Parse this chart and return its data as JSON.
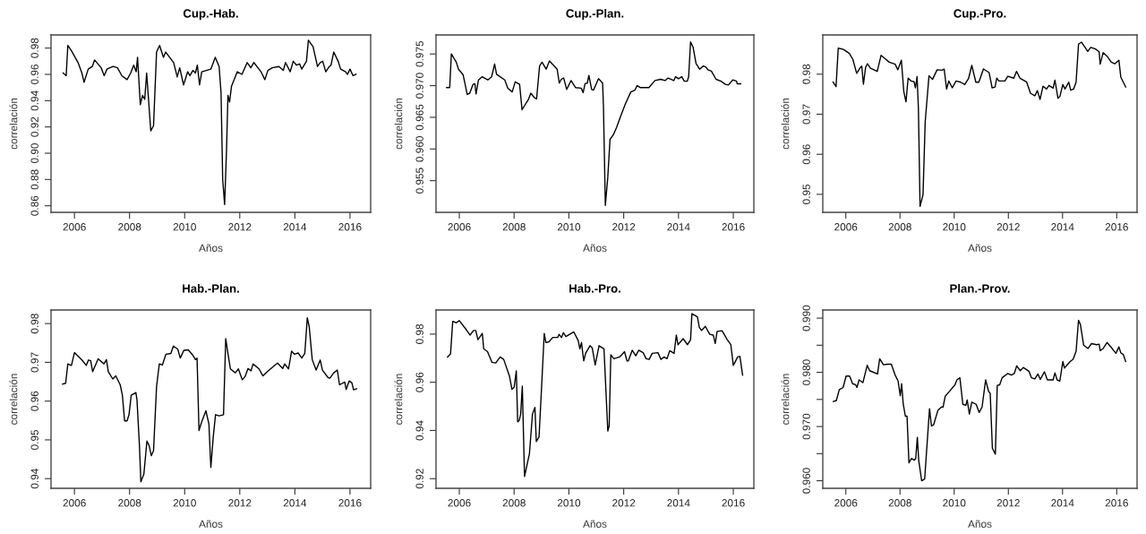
{
  "chart_data": [
    {
      "type": "line",
      "title": "Cup.-Hab.",
      "xlabel": "Años",
      "ylabel": "correlación",
      "color": "#000000",
      "xlim": [
        2005.15,
        2016.75
      ],
      "xticks": [
        2006,
        2008,
        2010,
        2012,
        2014,
        2016
      ],
      "ylim": [
        0.855,
        0.99
      ],
      "yticks": [
        0.86,
        0.88,
        {
          "value": 0.9,
          "label": "0.90"
        },
        0.92,
        0.94,
        0.96,
        0.98
      ],
      "x": [
        2005.59,
        2005.7,
        2005.76,
        2005.89,
        2006.13,
        2006.27,
        2006.35,
        2006.5,
        2006.65,
        2006.73,
        2006.97,
        2007.08,
        2007.18,
        2007.4,
        2007.56,
        2007.72,
        2007.91,
        2008.04,
        2008.15,
        2008.24,
        2008.29,
        2008.39,
        2008.47,
        2008.55,
        2008.62,
        2008.77,
        2008.87,
        2008.98,
        2009.09,
        2009.23,
        2009.31,
        2009.6,
        2009.73,
        2009.82,
        2009.96,
        2010.11,
        2010.19,
        2010.3,
        2010.39,
        2010.46,
        2010.54,
        2010.62,
        2010.95,
        2011.11,
        2011.25,
        2011.32,
        2011.38,
        2011.45,
        2011.52,
        2011.57,
        2011.63,
        2011.7,
        2011.91,
        2012.08,
        2012.27,
        2012.4,
        2012.51,
        2012.77,
        2012.91,
        2013.02,
        2013.18,
        2013.42,
        2013.58,
        2013.66,
        2013.83,
        2013.94,
        2014.06,
        2014.17,
        2014.25,
        2014.42,
        2014.49,
        2014.66,
        2014.82,
        2014.92,
        2015.01,
        2015.12,
        2015.25,
        2015.31,
        2015.41,
        2015.57,
        2015.66,
        2015.84,
        2015.91,
        2016.0,
        2016.11,
        2016.22
      ],
      "values": [
        0.961,
        0.959,
        0.982,
        0.978,
        0.969,
        0.961,
        0.954,
        0.964,
        0.966,
        0.971,
        0.965,
        0.959,
        0.964,
        0.966,
        0.965,
        0.959,
        0.956,
        0.961,
        0.967,
        0.962,
        0.973,
        0.937,
        0.944,
        0.941,
        0.961,
        0.917,
        0.921,
        0.977,
        0.982,
        0.973,
        0.977,
        0.969,
        0.958,
        0.965,
        0.952,
        0.962,
        0.959,
        0.963,
        0.961,
        0.967,
        0.952,
        0.962,
        0.964,
        0.973,
        0.966,
        0.946,
        0.88,
        0.861,
        0.903,
        0.944,
        0.939,
        0.951,
        0.962,
        0.96,
        0.969,
        0.965,
        0.969,
        0.962,
        0.956,
        0.963,
        0.965,
        0.966,
        0.963,
        0.969,
        0.962,
        0.97,
        0.967,
        0.968,
        0.964,
        0.97,
        0.986,
        0.981,
        0.966,
        0.969,
        0.97,
        0.962,
        0.966,
        0.967,
        0.977,
        0.97,
        0.964,
        0.962,
        0.96,
        0.964,
        0.959,
        0.96
      ]
    },
    {
      "type": "line",
      "title": "Cup.-Plan.",
      "xlabel": "Años",
      "ylabel": "correlación",
      "color": "#000000",
      "xlim": [
        2005.15,
        2016.75
      ],
      "xticks": [
        2006,
        2008,
        2010,
        2012,
        2014,
        2016
      ],
      "ylim": [
        0.95,
        0.978
      ],
      "yticks": [
        0.955,
        {
          "value": 0.96,
          "label": "0.960"
        },
        0.965,
        {
          "value": 0.97,
          "label": "0.970"
        },
        0.975
      ],
      "x": [
        2005.54,
        2005.65,
        2005.71,
        2005.89,
        2005.97,
        2006.14,
        2006.29,
        2006.38,
        2006.5,
        2006.57,
        2006.61,
        2006.7,
        2006.83,
        2007.04,
        2007.18,
        2007.29,
        2007.36,
        2007.66,
        2007.77,
        2007.93,
        2008.04,
        2008.2,
        2008.29,
        2008.39,
        2008.52,
        2008.61,
        2008.74,
        2008.82,
        2008.93,
        2009.02,
        2009.17,
        2009.29,
        2009.57,
        2009.65,
        2009.72,
        2009.81,
        2009.92,
        2010.08,
        2010.24,
        2010.45,
        2010.52,
        2010.59,
        2010.67,
        2010.73,
        2010.83,
        2010.9,
        2011.08,
        2011.23,
        2011.26,
        2011.33,
        2011.42,
        2011.5,
        2011.63,
        2011.74,
        2011.9,
        2012.06,
        2012.26,
        2012.41,
        2012.49,
        2012.6,
        2012.92,
        2013.14,
        2013.35,
        2013.51,
        2013.62,
        2013.83,
        2013.89,
        2014.0,
        2014.12,
        2014.21,
        2014.32,
        2014.37,
        2014.44,
        2014.53,
        2014.64,
        2014.77,
        2014.91,
        2015.01,
        2015.07,
        2015.2,
        2015.37,
        2015.55,
        2015.71,
        2015.82,
        2015.98,
        2016.12,
        2016.14,
        2016.27
      ],
      "values": [
        0.9697,
        0.9697,
        0.975,
        0.9737,
        0.9726,
        0.9717,
        0.9686,
        0.9688,
        0.9702,
        0.9703,
        0.9687,
        0.9709,
        0.9714,
        0.9709,
        0.9714,
        0.9734,
        0.9718,
        0.9709,
        0.9696,
        0.969,
        0.9706,
        0.9702,
        0.9662,
        0.9669,
        0.9678,
        0.9688,
        0.9681,
        0.9679,
        0.9731,
        0.9737,
        0.9726,
        0.9739,
        0.9726,
        0.9704,
        0.971,
        0.9712,
        0.9694,
        0.9708,
        0.9697,
        0.9696,
        0.9689,
        0.9703,
        0.9704,
        0.9716,
        0.9694,
        0.9693,
        0.9711,
        0.9704,
        0.9669,
        0.9511,
        0.9556,
        0.9615,
        0.9623,
        0.9634,
        0.9653,
        0.9671,
        0.969,
        0.9693,
        0.97,
        0.9697,
        0.9697,
        0.9708,
        0.971,
        0.9708,
        0.9712,
        0.9708,
        0.9714,
        0.9711,
        0.9714,
        0.9707,
        0.9707,
        0.9714,
        0.9769,
        0.9761,
        0.9735,
        0.9726,
        0.9731,
        0.9729,
        0.9725,
        0.9723,
        0.971,
        0.9707,
        0.9702,
        0.9701,
        0.9709,
        0.9707,
        0.9703,
        0.9703
      ]
    },
    {
      "type": "line",
      "title": "Cup.-Pro.",
      "xlabel": "Años",
      "ylabel": "correlación",
      "color": "#000000",
      "xlim": [
        2005.15,
        2016.75
      ],
      "xticks": [
        2006,
        2008,
        2010,
        2012,
        2014,
        2016
      ],
      "ylim": [
        0.9455,
        0.9898
      ],
      "yticks": [
        0.95,
        0.96,
        0.97,
        0.98
      ],
      "x": [
        2005.53,
        2005.64,
        2005.72,
        2005.91,
        2006.13,
        2006.26,
        2006.4,
        2006.54,
        2006.59,
        2006.65,
        2006.73,
        2006.8,
        2006.91,
        2007.16,
        2007.3,
        2007.43,
        2007.6,
        2007.82,
        2007.92,
        2008.05,
        2008.14,
        2008.22,
        2008.3,
        2008.41,
        2008.52,
        2008.57,
        2008.63,
        2008.68,
        2008.74,
        2008.85,
        2008.93,
        2009.07,
        2009.2,
        2009.37,
        2009.55,
        2009.63,
        2009.72,
        2009.8,
        2009.93,
        2010.07,
        2010.24,
        2010.39,
        2010.53,
        2010.65,
        2010.8,
        2010.91,
        2011.08,
        2011.29,
        2011.4,
        2011.51,
        2011.57,
        2011.65,
        2011.87,
        2011.98,
        2012.2,
        2012.3,
        2012.43,
        2012.67,
        2012.82,
        2012.98,
        2013.07,
        2013.17,
        2013.28,
        2013.41,
        2013.5,
        2013.65,
        2013.72,
        2013.83,
        2013.9,
        2014.01,
        2014.09,
        2014.23,
        2014.3,
        2014.41,
        2014.5,
        2014.59,
        2014.7,
        2014.83,
        2014.93,
        2015.04,
        2015.21,
        2015.35,
        2015.39,
        2015.5,
        2015.64,
        2015.8,
        2015.93,
        2016.08,
        2016.15,
        2016.33
      ],
      "values": [
        0.978,
        0.9769,
        0.9865,
        0.9862,
        0.9852,
        0.9837,
        0.9802,
        0.9817,
        0.982,
        0.9775,
        0.9817,
        0.9826,
        0.9815,
        0.9807,
        0.9847,
        0.984,
        0.983,
        0.9825,
        0.9811,
        0.9835,
        0.9757,
        0.9731,
        0.979,
        0.9783,
        0.9781,
        0.9766,
        0.9794,
        0.9714,
        0.947,
        0.9499,
        0.9681,
        0.9796,
        0.9787,
        0.9811,
        0.981,
        0.9813,
        0.9763,
        0.9783,
        0.9766,
        0.9783,
        0.978,
        0.9774,
        0.9789,
        0.9822,
        0.978,
        0.978,
        0.9813,
        0.9804,
        0.9766,
        0.9768,
        0.979,
        0.9783,
        0.9783,
        0.9795,
        0.979,
        0.9807,
        0.979,
        0.9781,
        0.9752,
        0.9746,
        0.9759,
        0.9737,
        0.977,
        0.9763,
        0.9772,
        0.9765,
        0.9785,
        0.974,
        0.9744,
        0.9774,
        0.9763,
        0.978,
        0.976,
        0.9763,
        0.978,
        0.9875,
        0.988,
        0.9867,
        0.9857,
        0.9867,
        0.9863,
        0.9856,
        0.9825,
        0.9854,
        0.9845,
        0.983,
        0.9826,
        0.9835,
        0.9793,
        0.9768
      ]
    },
    {
      "type": "line",
      "title": "Hab.-Plan.",
      "xlabel": "Años",
      "ylabel": "correlación",
      "color": "#000000",
      "xlim": [
        2005.15,
        2016.75
      ],
      "xticks": [
        2006,
        2008,
        2010,
        2012,
        2014,
        2016
      ],
      "ylim": [
        0.9375,
        0.9835
      ],
      "yticks": [
        0.94,
        0.95,
        0.96,
        0.97,
        0.98
      ],
      "x": [
        2005.57,
        2005.68,
        2005.76,
        2005.89,
        2006.0,
        2006.27,
        2006.43,
        2006.51,
        2006.59,
        2006.66,
        2006.86,
        2007.07,
        2007.16,
        2007.23,
        2007.39,
        2007.5,
        2007.66,
        2007.74,
        2007.82,
        2007.91,
        2007.98,
        2008.06,
        2008.23,
        2008.27,
        2008.36,
        2008.41,
        2008.52,
        2008.63,
        2008.71,
        2008.79,
        2008.87,
        2008.98,
        2009.08,
        2009.19,
        2009.32,
        2009.5,
        2009.59,
        2009.75,
        2009.84,
        2009.97,
        2010.13,
        2010.29,
        2010.39,
        2010.45,
        2010.52,
        2010.61,
        2010.77,
        2010.88,
        2010.95,
        2011.04,
        2011.12,
        2011.25,
        2011.41,
        2011.49,
        2011.57,
        2011.66,
        2011.84,
        2011.95,
        2012.09,
        2012.19,
        2012.3,
        2012.41,
        2012.48,
        2012.7,
        2012.84,
        2013.0,
        2013.23,
        2013.37,
        2013.56,
        2013.63,
        2013.77,
        2013.88,
        2013.98,
        2014.12,
        2014.25,
        2014.36,
        2014.45,
        2014.52,
        2014.63,
        2014.77,
        2014.92,
        2015.0,
        2015.2,
        2015.27,
        2015.41,
        2015.54,
        2015.62,
        2015.81,
        2015.86,
        2015.97,
        2016.07,
        2016.13,
        2016.24
      ],
      "values": [
        0.9644,
        0.9646,
        0.9696,
        0.9692,
        0.9725,
        0.9706,
        0.9692,
        0.9706,
        0.9704,
        0.9676,
        0.9709,
        0.9696,
        0.9707,
        0.9676,
        0.9657,
        0.9665,
        0.9642,
        0.9615,
        0.9549,
        0.9549,
        0.9565,
        0.9615,
        0.9622,
        0.9603,
        0.9483,
        0.9392,
        0.9412,
        0.9497,
        0.9485,
        0.9459,
        0.9472,
        0.9638,
        0.9696,
        0.9693,
        0.9721,
        0.9723,
        0.9742,
        0.9734,
        0.9711,
        0.9731,
        0.9732,
        0.9719,
        0.9707,
        0.9711,
        0.9524,
        0.9545,
        0.9575,
        0.9541,
        0.9429,
        0.951,
        0.9565,
        0.9562,
        0.9565,
        0.9761,
        0.9723,
        0.9683,
        0.9673,
        0.9683,
        0.9655,
        0.9663,
        0.9684,
        0.9678,
        0.9696,
        0.9683,
        0.9665,
        0.9676,
        0.969,
        0.9698,
        0.9684,
        0.9696,
        0.9683,
        0.9729,
        0.9721,
        0.9724,
        0.9711,
        0.9723,
        0.9815,
        0.9792,
        0.9707,
        0.968,
        0.9706,
        0.968,
        0.9661,
        0.9659,
        0.9673,
        0.968,
        0.9642,
        0.9649,
        0.963,
        0.9652,
        0.9647,
        0.9629,
        0.9632
      ]
    },
    {
      "type": "line",
      "title": "Hab.-Pro.",
      "xlabel": "Años",
      "ylabel": "correlación",
      "color": "#000000",
      "xlim": [
        2005.15,
        2016.75
      ],
      "xticks": [
        2006,
        2008,
        2010,
        2012,
        2014,
        2016
      ],
      "ylim": [
        0.916,
        0.99
      ],
      "yticks": [
        0.92,
        0.94,
        0.96,
        0.98
      ],
      "x": [
        2005.57,
        2005.68,
        2005.76,
        2005.89,
        2006.0,
        2006.25,
        2006.39,
        2006.52,
        2006.6,
        2006.68,
        2006.84,
        2006.89,
        2007.03,
        2007.19,
        2007.33,
        2007.49,
        2007.62,
        2007.83,
        2007.92,
        2008.0,
        2008.08,
        2008.13,
        2008.19,
        2008.24,
        2008.3,
        2008.38,
        2008.56,
        2008.67,
        2008.76,
        2008.81,
        2008.91,
        2009.0,
        2009.1,
        2009.16,
        2009.27,
        2009.41,
        2009.59,
        2009.64,
        2009.73,
        2009.8,
        2009.89,
        2010.18,
        2010.34,
        2010.4,
        2010.46,
        2010.54,
        2010.61,
        2010.77,
        2010.85,
        2010.96,
        2011.1,
        2011.28,
        2011.42,
        2011.47,
        2011.53,
        2011.64,
        2011.85,
        2012.03,
        2012.12,
        2012.17,
        2012.31,
        2012.44,
        2012.55,
        2012.71,
        2012.82,
        2012.93,
        2013.04,
        2013.25,
        2013.36,
        2013.47,
        2013.58,
        2013.68,
        2013.84,
        2013.92,
        2013.98,
        2014.17,
        2014.33,
        2014.44,
        2014.49,
        2014.69,
        2014.76,
        2014.84,
        2014.98,
        2015.14,
        2015.27,
        2015.34,
        2015.41,
        2015.59,
        2015.78,
        2015.91,
        2016.0,
        2016.16,
        2016.24,
        2016.34
      ],
      "values": [
        0.9705,
        0.9718,
        0.9853,
        0.9847,
        0.9856,
        0.9819,
        0.9796,
        0.9815,
        0.9815,
        0.9777,
        0.9803,
        0.9739,
        0.9727,
        0.9683,
        0.968,
        0.9705,
        0.9695,
        0.9626,
        0.9571,
        0.9579,
        0.9647,
        0.9436,
        0.9443,
        0.9468,
        0.9584,
        0.9209,
        0.9304,
        0.9468,
        0.9496,
        0.9354,
        0.9373,
        0.9574,
        0.9803,
        0.9765,
        0.9768,
        0.9786,
        0.9786,
        0.9799,
        0.9786,
        0.9806,
        0.979,
        0.9809,
        0.9773,
        0.9739,
        0.9765,
        0.9689,
        0.972,
        0.9752,
        0.9743,
        0.9672,
        0.9752,
        0.9739,
        0.9398,
        0.942,
        0.9714,
        0.9698,
        0.9705,
        0.9727,
        0.9689,
        0.9689,
        0.9733,
        0.971,
        0.9733,
        0.9723,
        0.9698,
        0.9695,
        0.972,
        0.9723,
        0.9695,
        0.9705,
        0.9698,
        0.9731,
        0.972,
        0.9796,
        0.9756,
        0.9781,
        0.9756,
        0.9777,
        0.9885,
        0.9872,
        0.9828,
        0.9815,
        0.9832,
        0.9799,
        0.9796,
        0.9761,
        0.9811,
        0.9814,
        0.9777,
        0.9756,
        0.967,
        0.9705,
        0.9708,
        0.963
      ]
    },
    {
      "type": "line",
      "title": "Plan.-Prov.",
      "xlabel": "Años",
      "ylabel": "correlación",
      "color": "#000000",
      "xlim": [
        2005.15,
        2016.75
      ],
      "xticks": [
        2006,
        2008,
        2010,
        2012,
        2014,
        2016
      ],
      "ylim": [
        0.9586,
        0.9915
      ],
      "yticks": [
        {
          "value": 0.96,
          "label": "0.960"
        },
        {
          "value": 0.965,
          "label": null
        },
        {
          "value": 0.97,
          "label": "0.970"
        },
        {
          "value": 0.975,
          "label": null
        },
        {
          "value": 0.98,
          "label": "0.980"
        },
        {
          "value": 0.985,
          "label": null
        },
        {
          "value": 0.99,
          "label": "0.990"
        }
      ],
      "x": [
        2005.54,
        2005.65,
        2005.76,
        2005.9,
        2006.01,
        2006.14,
        2006.25,
        2006.36,
        2006.41,
        2006.49,
        2006.63,
        2006.79,
        2006.88,
        2007.17,
        2007.25,
        2007.39,
        2007.53,
        2007.68,
        2007.82,
        2007.93,
        2008.01,
        2008.06,
        2008.12,
        2008.2,
        2008.26,
        2008.33,
        2008.42,
        2008.53,
        2008.58,
        2008.64,
        2008.69,
        2008.8,
        2008.91,
        2009.09,
        2009.16,
        2009.24,
        2009.4,
        2009.53,
        2009.59,
        2009.67,
        2009.81,
        2010.03,
        2010.1,
        2010.21,
        2010.32,
        2010.43,
        2010.48,
        2010.56,
        2010.65,
        2010.81,
        2010.92,
        2011.03,
        2011.16,
        2011.27,
        2011.33,
        2011.41,
        2011.52,
        2011.59,
        2011.68,
        2011.77,
        2011.98,
        2012.11,
        2012.22,
        2012.31,
        2012.44,
        2012.55,
        2012.76,
        2012.85,
        2012.98,
        2013.09,
        2013.18,
        2013.33,
        2013.44,
        2013.65,
        2013.72,
        2013.8,
        2013.9,
        2014.01,
        2014.07,
        2014.28,
        2014.39,
        2014.5,
        2014.59,
        2014.66,
        2014.78,
        2014.94,
        2015.07,
        2015.26,
        2015.35,
        2015.39,
        2015.5,
        2015.64,
        2015.8,
        2015.89,
        2015.97,
        2016.08,
        2016.15,
        2016.24,
        2016.33
      ],
      "values": [
        0.9746,
        0.9748,
        0.9768,
        0.9772,
        0.9793,
        0.9793,
        0.9779,
        0.9777,
        0.9772,
        0.9786,
        0.9781,
        0.9813,
        0.9803,
        0.9797,
        0.9825,
        0.9814,
        0.9815,
        0.9815,
        0.9795,
        0.9784,
        0.9757,
        0.9779,
        0.9741,
        0.9719,
        0.9719,
        0.9633,
        0.9641,
        0.9638,
        0.9641,
        0.968,
        0.9638,
        0.96,
        0.9603,
        0.9733,
        0.9701,
        0.9703,
        0.973,
        0.9736,
        0.9736,
        0.9756,
        0.9764,
        0.9777,
        0.9786,
        0.979,
        0.9741,
        0.9739,
        0.9749,
        0.9723,
        0.9745,
        0.9741,
        0.9726,
        0.9736,
        0.9786,
        0.9765,
        0.9761,
        0.966,
        0.9649,
        0.9776,
        0.9777,
        0.979,
        0.9798,
        0.9795,
        0.9798,
        0.9812,
        0.9803,
        0.9809,
        0.9802,
        0.979,
        0.9788,
        0.9797,
        0.9787,
        0.9801,
        0.9786,
        0.9786,
        0.9799,
        0.9786,
        0.9784,
        0.982,
        0.9808,
        0.982,
        0.9824,
        0.9839,
        0.9896,
        0.9888,
        0.985,
        0.9844,
        0.9853,
        0.9851,
        0.9852,
        0.984,
        0.9844,
        0.9855,
        0.9846,
        0.984,
        0.9835,
        0.9847,
        0.9836,
        0.9833,
        0.982
      ]
    }
  ]
}
